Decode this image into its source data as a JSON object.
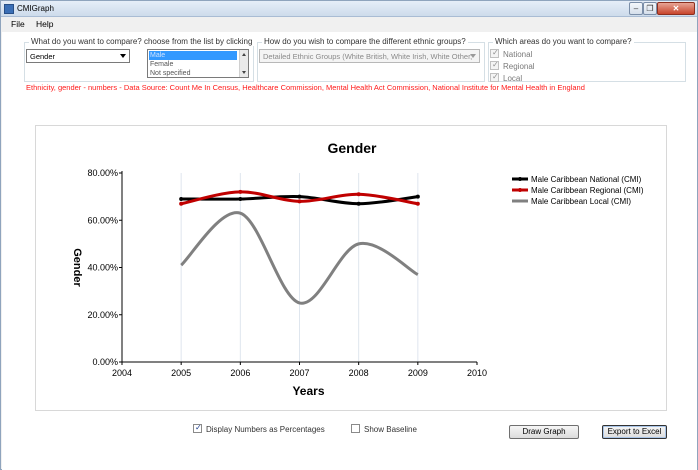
{
  "window": {
    "title": "CMIGraph",
    "close_glyph": "✕",
    "minimize_glyph": "–",
    "maximize_glyph": "❐"
  },
  "menu": {
    "file": "File",
    "help": "Help"
  },
  "compare": {
    "label": "What do you want to compare? choose from the list by clicking",
    "selected": "Gender",
    "options": [
      "Male",
      "Female",
      "Not specified"
    ],
    "selected_option_index": 0
  },
  "ethnic": {
    "label": "How do you wish to compare the different ethnic groups?",
    "value": "Detailed Ethnic Groups (White British, White Irish, White Other,"
  },
  "areas": {
    "label": "Which areas do you want to compare?",
    "items": [
      {
        "label": "National",
        "checked": true
      },
      {
        "label": "Regional",
        "checked": true
      },
      {
        "label": "Local",
        "checked": true
      }
    ]
  },
  "source_text": "Ethnicity, gender - numbers - Data Source: Count Me In Census, Healthcare Commission, Mental Health Act Commission, National Institute for Mental Health in England",
  "chart_data": {
    "type": "line",
    "title": "Gender",
    "xlabel": "Years",
    "ylabel": "Gender",
    "xlim": [
      2004,
      2010
    ],
    "ylim": [
      0,
      80
    ],
    "x_ticks": [
      "2004",
      "2005",
      "2006",
      "2007",
      "2008",
      "2009",
      "2010"
    ],
    "y_ticks": [
      "0.00%",
      "20.00%",
      "40.00%",
      "60.00%",
      "80.00%"
    ],
    "x": [
      2005,
      2006,
      2007,
      2008,
      2009
    ],
    "series": [
      {
        "name": "Male Caribbean National (CMI)",
        "color": "#000000",
        "values": [
          69,
          69,
          70,
          67,
          70
        ]
      },
      {
        "name": "Male Caribbean Regional (CMI)",
        "color": "#c00000",
        "values": [
          67,
          72,
          68,
          71,
          67
        ]
      },
      {
        "name": "Male Caribbean Local (CMI)",
        "color": "#808080",
        "values": [
          41,
          63,
          25,
          50,
          37
        ]
      }
    ],
    "grid": "vertical",
    "legend": "right"
  },
  "options": {
    "percent_label": "Display Numbers as Percentages",
    "percent_checked": true,
    "baseline_label": "Show Baseline",
    "baseline_checked": false
  },
  "buttons": {
    "draw": "Draw Graph",
    "export": "Export to Excel"
  },
  "check_glyph": "✓"
}
